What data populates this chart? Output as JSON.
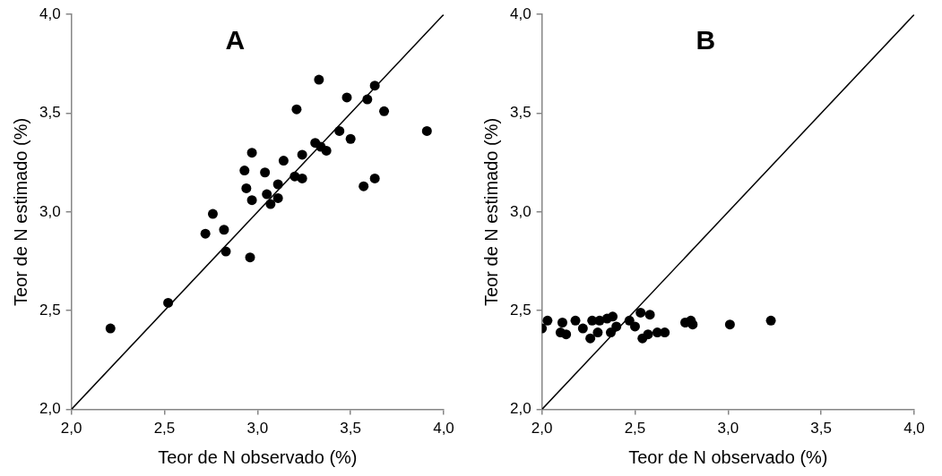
{
  "chart_data": [
    {
      "type": "scatter",
      "title": "A",
      "xlabel": "Teor de N observado (%)",
      "ylabel": "Teor de N estimado (%)",
      "xlim": [
        2,
        4
      ],
      "ylim": [
        2,
        4
      ],
      "xticks": [
        {
          "value": 2,
          "label": "2,0"
        },
        {
          "value": 2.5,
          "label": "2,5"
        },
        {
          "value": 3,
          "label": "3,0"
        },
        {
          "value": 3.5,
          "label": "3,5"
        },
        {
          "value": 4,
          "label": "4,0"
        }
      ],
      "yticks": [
        {
          "value": 2,
          "label": "2,0"
        },
        {
          "value": 2.5,
          "label": "2,5"
        },
        {
          "value": 3,
          "label": "3,0"
        },
        {
          "value": 3.5,
          "label": "3,5"
        },
        {
          "value": 4,
          "label": "4,0"
        }
      ],
      "grid": false,
      "marker": "circle",
      "series": [
        {
          "color": "#000000",
          "x": [
            3.33,
            3.63,
            3.48,
            3.59,
            3.21,
            3.68,
            3.91,
            3.44,
            3.5,
            3.31,
            3.34,
            3.37,
            2.97,
            3.24,
            3.14,
            2.93,
            3.04,
            3.2,
            3.24,
            3.63,
            2.94,
            3.11,
            3.57,
            3.05,
            3.11,
            2.97,
            3.07,
            2.76,
            2.82,
            2.72,
            2.83,
            2.96,
            2.52,
            2.21
          ],
          "values": [
            3.67,
            3.64,
            3.58,
            3.57,
            3.52,
            3.51,
            3.41,
            3.41,
            3.37,
            3.35,
            3.33,
            3.31,
            3.3,
            3.29,
            3.26,
            3.21,
            3.2,
            3.18,
            3.17,
            3.17,
            3.12,
            3.14,
            3.13,
            3.09,
            3.07,
            3.06,
            3.04,
            2.99,
            2.91,
            2.89,
            2.8,
            2.77,
            2.54,
            2.41
          ]
        },
        {
          "type": "line",
          "color": "#000000",
          "marker": "none",
          "x": [
            2,
            4
          ],
          "values": [
            2,
            4
          ]
        }
      ]
    },
    {
      "type": "scatter",
      "title": "B",
      "xlabel": "Teor de N observado (%)",
      "ylabel": "Teor de N estimado (%)",
      "xlim": [
        2,
        4
      ],
      "ylim": [
        2,
        4
      ],
      "xticks": [
        {
          "value": 2,
          "label": "2,0"
        },
        {
          "value": 2.5,
          "label": "2,5"
        },
        {
          "value": 3,
          "label": "3,0"
        },
        {
          "value": 3.5,
          "label": "3,5"
        },
        {
          "value": 4,
          "label": "4,0"
        }
      ],
      "yticks": [
        {
          "value": 2,
          "label": "2,0"
        },
        {
          "value": 2.5,
          "label": "2,5"
        },
        {
          "value": 3,
          "label": "3,0"
        },
        {
          "value": 3.5,
          "label": "3,5"
        },
        {
          "value": 4,
          "label": "4,0"
        }
      ],
      "grid": false,
      "marker": "circle",
      "series": [
        {
          "color": "#000000",
          "x": [
            2.0,
            2.02,
            2.03,
            2.1,
            2.11,
            2.13,
            2.18,
            2.22,
            2.26,
            2.27,
            2.3,
            2.31,
            2.35,
            2.37,
            2.38,
            2.4,
            2.47,
            2.5,
            2.53,
            2.54,
            2.57,
            2.58,
            2.62,
            2.66,
            2.77,
            2.8,
            2.81,
            3.01,
            3.23
          ],
          "values": [
            2.41,
            null,
            2.45,
            2.39,
            2.44,
            2.38,
            2.45,
            2.41,
            2.36,
            2.45,
            2.39,
            2.45,
            2.46,
            2.39,
            2.47,
            2.42,
            2.45,
            2.42,
            2.49,
            2.36,
            2.38,
            2.48,
            2.39,
            2.39,
            2.44,
            2.45,
            2.43,
            2.43,
            2.45
          ]
        },
        {
          "type": "line",
          "color": "#000000",
          "marker": "none",
          "x": [
            2,
            4
          ],
          "values": [
            2,
            4
          ]
        }
      ]
    }
  ]
}
